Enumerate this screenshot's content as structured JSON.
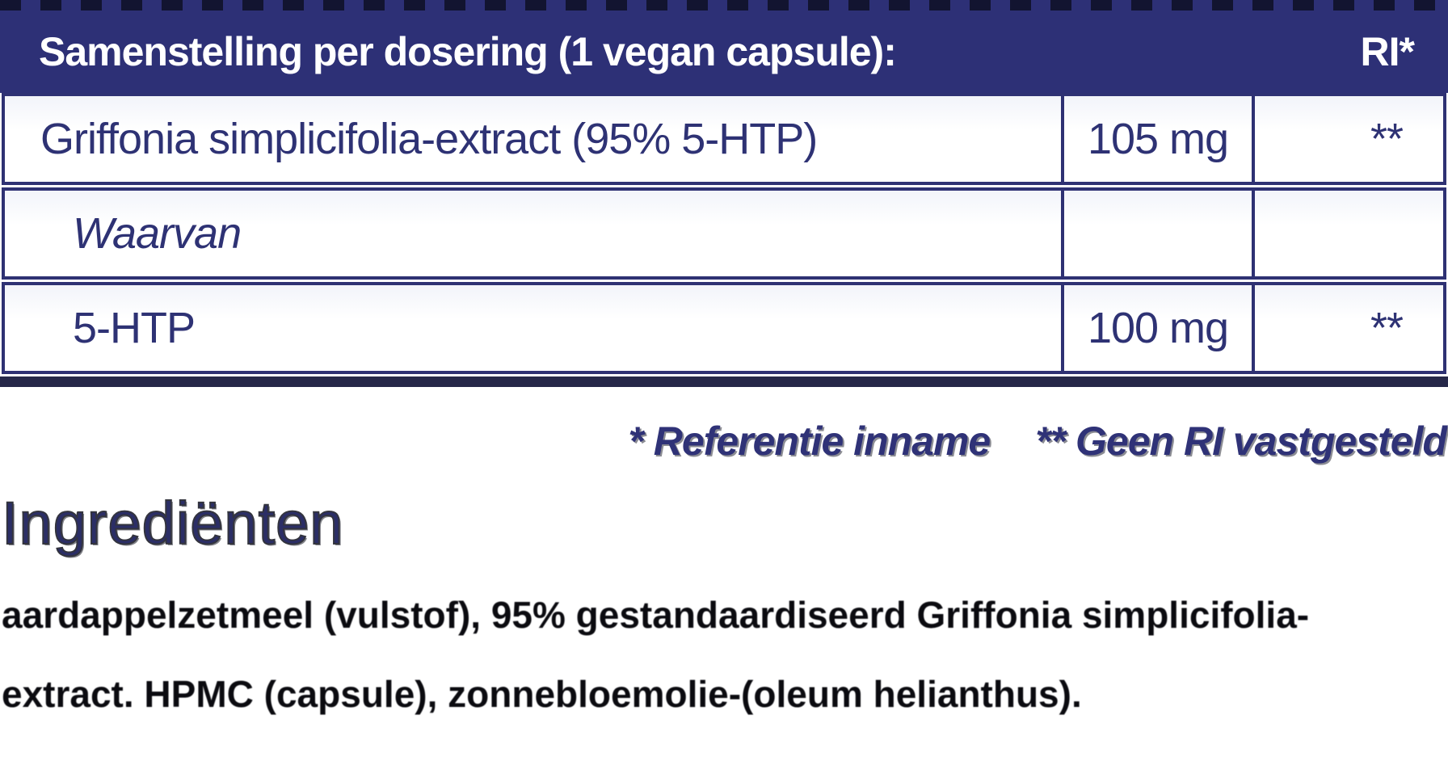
{
  "colors": {
    "navy_header_bg": "#2d3076",
    "table_border_navy": "#2e3173",
    "table_text_navy": "#2e3274",
    "header_text": "#ffffff",
    "bottom_bar": "#262849",
    "ingredient_text": "#0b0b10"
  },
  "header": {
    "title": "Samenstelling per dosering (1 vegan capsule):",
    "ri_label": "RI*"
  },
  "table": {
    "rows": [
      {
        "name": "Griffonia simplicifolia-extract (95% 5-HTP)",
        "amount": "105 mg",
        "ri": "**"
      },
      {
        "name": "Waarvan",
        "amount": "",
        "ri": ""
      },
      {
        "name": "5-HTP",
        "amount": "100 mg",
        "ri": "**"
      }
    ]
  },
  "footnotes": {
    "reference": "* Referentie inname",
    "no_ri": "** Geen RI vastgesteld"
  },
  "ingredients": {
    "heading": "Ingrediënten",
    "line1": "aardappelzetmeel (vulstof), 95% gestandaardiseerd Griffonia simplicifolia-",
    "line2": "extract. HPMC (capsule), zonnebloemolie-(oleum helianthus)."
  }
}
